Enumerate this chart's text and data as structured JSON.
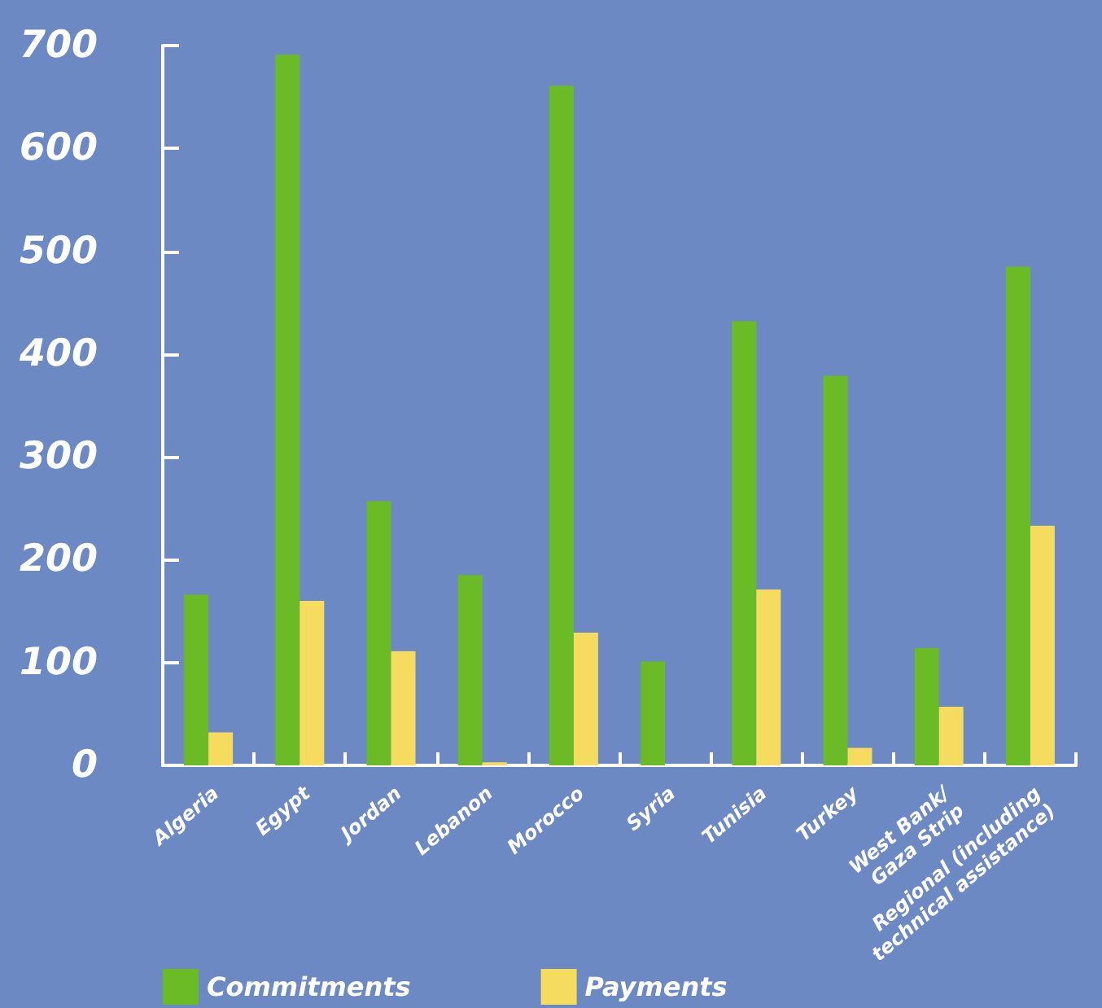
{
  "chart_data": {
    "type": "bar",
    "categories": [
      "Algeria",
      "Egypt",
      "Jordan",
      "Lebanon",
      "Morocco",
      "Syria",
      "Tunisia",
      "Turkey",
      "West Bank/\nGaza Strip",
      "Regional (including\ntechnical assistance)"
    ],
    "series": [
      {
        "name": "Commitments",
        "color": "#6abb26",
        "values": [
          166,
          691,
          257,
          185,
          661,
          101,
          432,
          379,
          114,
          485
        ]
      },
      {
        "name": "Payments",
        "color": "#f5dc5e",
        "values": [
          32,
          160,
          111,
          3,
          129,
          0,
          171,
          17,
          57,
          233
        ]
      }
    ],
    "ylim": [
      0,
      700
    ],
    "yticks": [
      0,
      100,
      200,
      300,
      400,
      500,
      600,
      700
    ],
    "grid": false,
    "legend": "bottom left"
  }
}
